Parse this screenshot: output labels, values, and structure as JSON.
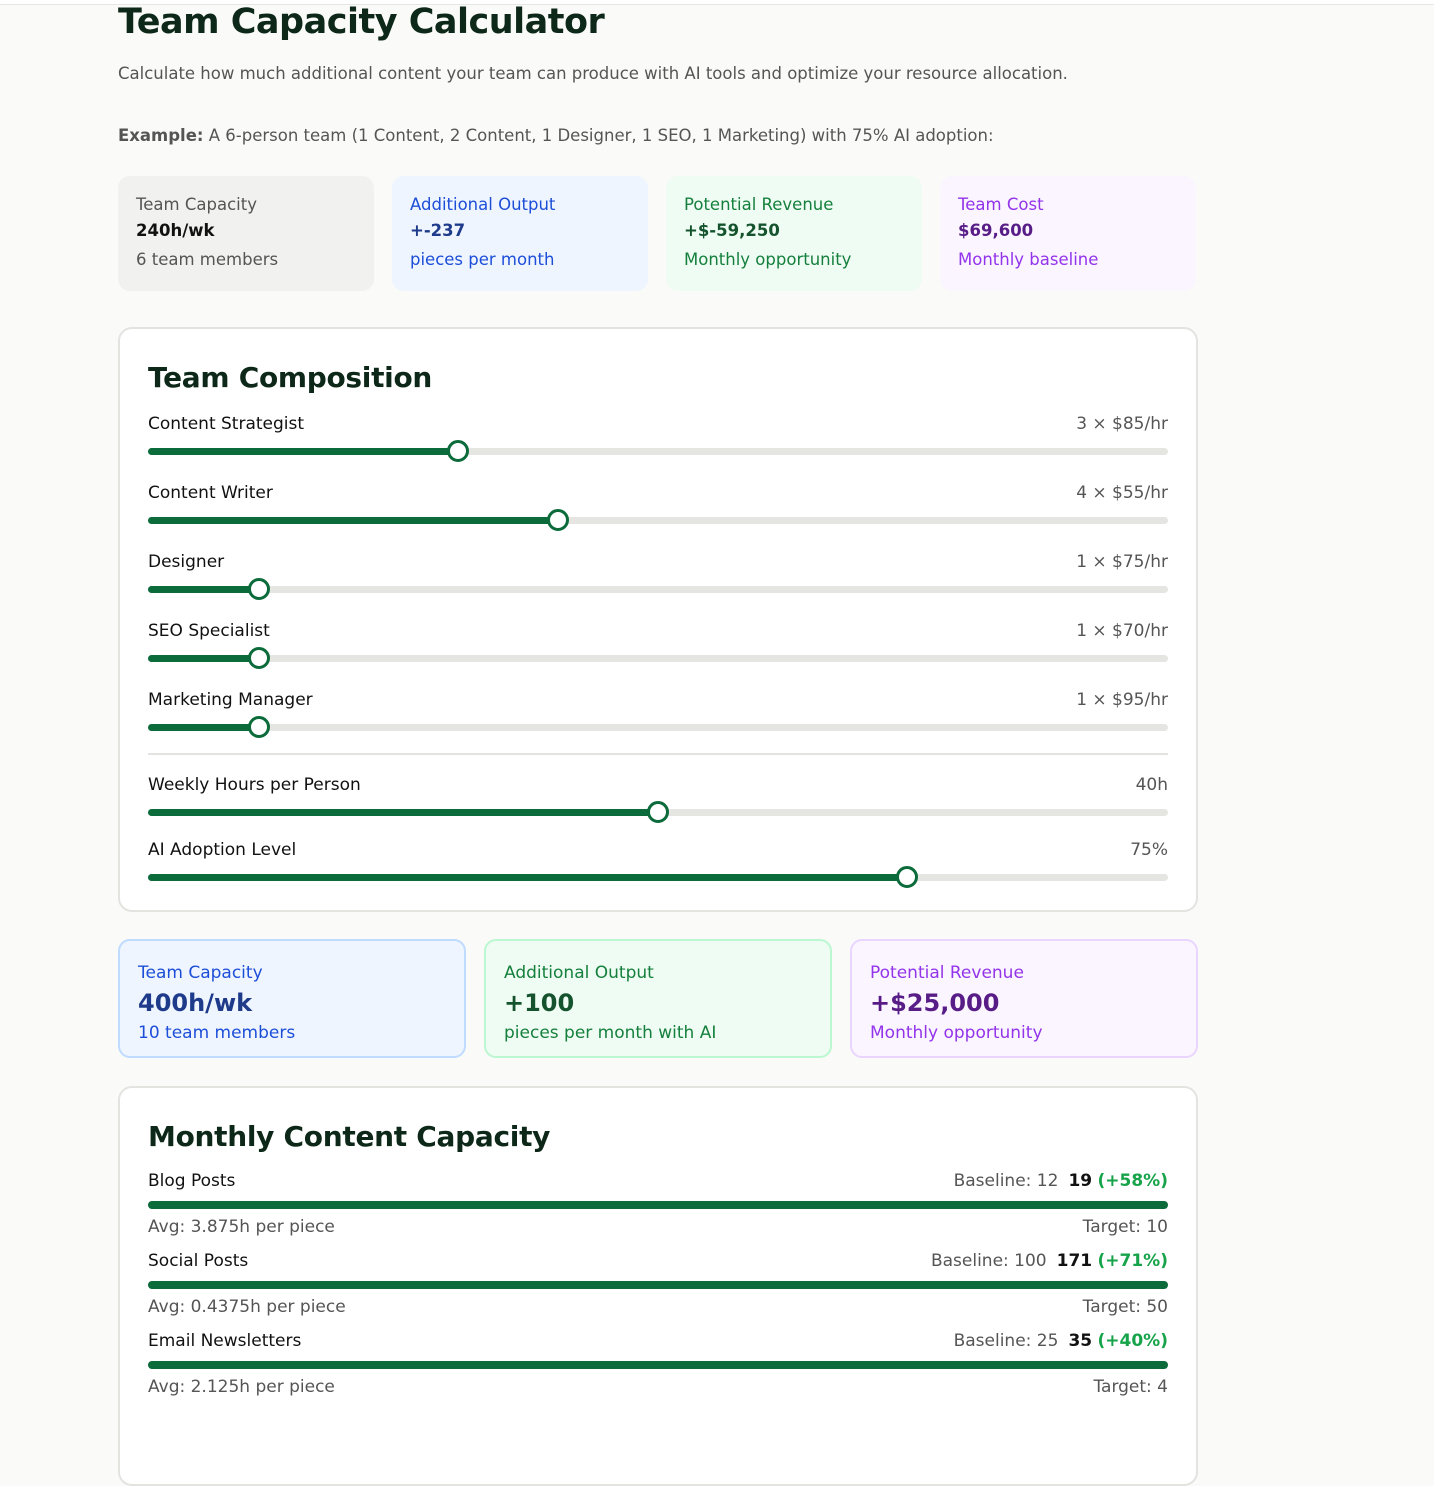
{
  "header": {
    "title": "Team Capacity Calculator",
    "description": "Calculate how much additional content your team can produce with AI tools and optimize your resource allocation."
  },
  "example": {
    "label": "Example:",
    "text": "A 6-person team (1 Content, 2 Content, 1 Designer, 1 SEO, 1 Marketing) with 75% AI adoption:"
  },
  "example_cards": [
    {
      "label": "Team Capacity",
      "value": "240h/wk",
      "note": "6 team members"
    },
    {
      "label": "Additional Output",
      "value": "+-237",
      "note": "pieces per month"
    },
    {
      "label": "Potential Revenue",
      "value": "+$-59,250",
      "note": "Monthly opportunity"
    },
    {
      "label": "Team Cost",
      "value": "$69,600",
      "note": "Monthly baseline"
    }
  ],
  "composition": {
    "title": "Team Composition",
    "roles": [
      {
        "name": "Content Strategist",
        "detail": "3 × $85/hr"
      },
      {
        "name": "Content Writer",
        "detail": "4 × $55/hr"
      },
      {
        "name": "Designer",
        "detail": "1 × $75/hr"
      },
      {
        "name": "SEO Specialist",
        "detail": "1 × $70/hr"
      },
      {
        "name": "Marketing Manager",
        "detail": "1 × $95/hr"
      }
    ],
    "settings": [
      {
        "name": "Weekly Hours per Person",
        "detail": "40h"
      },
      {
        "name": "AI Adoption Level",
        "detail": "75%"
      }
    ]
  },
  "summary_cards": [
    {
      "label": "Team Capacity",
      "value": "400h/wk",
      "note": "10 team members"
    },
    {
      "label": "Additional Output",
      "value": "+100",
      "note": "pieces per month with AI"
    },
    {
      "label": "Potential Revenue",
      "value": "+$25,000",
      "note": "Monthly opportunity"
    }
  ],
  "capacity": {
    "title": "Monthly Content Capacity",
    "items": [
      {
        "name": "Blog Posts",
        "baseline": "Baseline: 12",
        "value": "19",
        "change": "(+58%)",
        "avg": "Avg: 3.875h per piece",
        "target": "Target: 10"
      },
      {
        "name": "Social Posts",
        "baseline": "Baseline: 100",
        "value": "171",
        "change": "(+71%)",
        "avg": "Avg: 0.4375h per piece",
        "target": "Target: 50"
      },
      {
        "name": "Email Newsletters",
        "baseline": "Baseline: 25",
        "value": "35",
        "change": "(+40%)",
        "avg": "Avg: 2.125h per piece",
        "target": "Target: 4"
      }
    ]
  }
}
